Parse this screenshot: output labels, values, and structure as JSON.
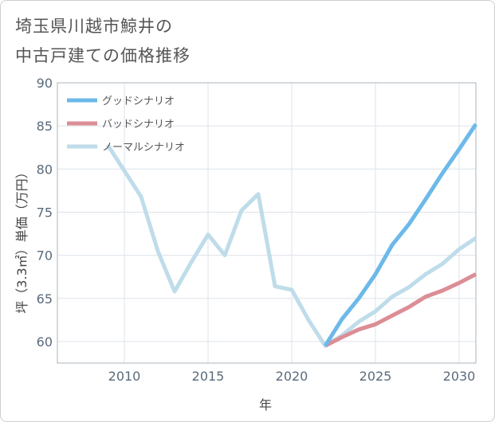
{
  "title": {
    "line1": "埼玉県川越市鯨井の",
    "line2": "中古戸建ての価格推移"
  },
  "chart_data": {
    "type": "line",
    "title": "埼玉県川越市鯨井の中古戸建ての価格推移",
    "xlabel": "年",
    "ylabel": "坪（3.3㎡）単価（万円）",
    "xlim": [
      2006,
      2031
    ],
    "ylim": [
      57.5,
      90
    ],
    "xticks": [
      2010,
      2015,
      2020,
      2025,
      2030
    ],
    "yticks": [
      60,
      65,
      70,
      75,
      80,
      85,
      90
    ],
    "grid": true,
    "legend_position": "top-left",
    "series": [
      {
        "name": "グッドシナリオ",
        "color": "#6cb9ea",
        "x": [
          2022,
          2023,
          2024,
          2025,
          2026,
          2027,
          2028,
          2029,
          2030,
          2031
        ],
        "y": [
          59.5,
          62.6,
          65.0,
          67.8,
          71.2,
          73.6,
          76.5,
          79.5,
          82.3,
          85.2
        ]
      },
      {
        "name": "バッドシナリオ",
        "color": "#dc8d95",
        "x": [
          2022,
          2023,
          2024,
          2025,
          2026,
          2027,
          2028,
          2029,
          2030,
          2031
        ],
        "y": [
          59.5,
          60.5,
          61.4,
          62.0,
          63.0,
          64.0,
          65.2,
          65.9,
          66.8,
          67.8
        ]
      },
      {
        "name": "ノーマルシナリオ",
        "color": "#bfdcea",
        "x": [
          2009,
          2010,
          2011,
          2012,
          2013,
          2014,
          2015,
          2016,
          2017,
          2018,
          2019,
          2020,
          2021,
          2022,
          2023,
          2024,
          2025,
          2026,
          2027,
          2028,
          2029,
          2030,
          2031
        ],
        "y": [
          82.8,
          79.8,
          76.8,
          70.5,
          65.8,
          69.2,
          72.4,
          70.0,
          75.2,
          77.1,
          66.4,
          66.0,
          62.5,
          59.5,
          60.7,
          62.3,
          63.5,
          65.2,
          66.3,
          67.8,
          69.0,
          70.7,
          72.0
        ]
      }
    ]
  }
}
